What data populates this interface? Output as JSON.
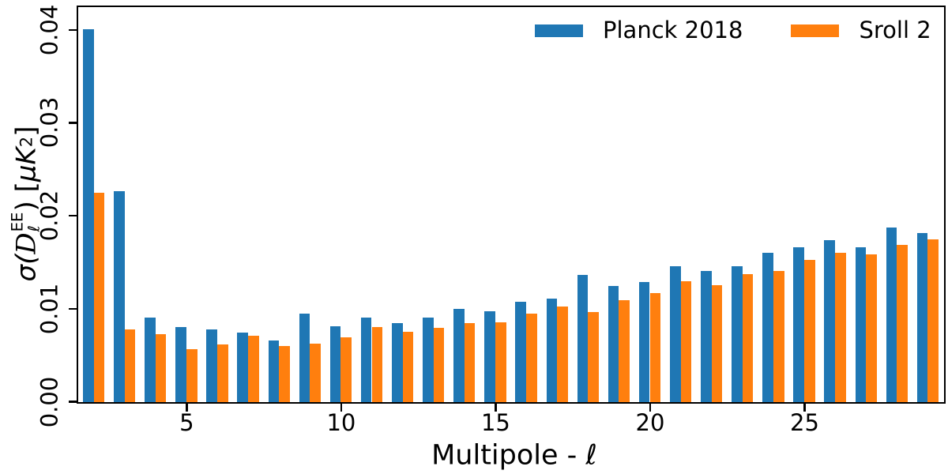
{
  "chart_data": {
    "type": "bar",
    "title": "",
    "xlabel": "Multipole - ℓ",
    "ylabel_text": "σ(D_ℓ^EE) [μK²]",
    "ylabel": {
      "prefix": "σ(",
      "symbol": "D",
      "sup": "EE",
      "sub": "ℓ",
      "mid": ") [",
      "unit": "μK",
      "unit_exp": "2",
      "suffix": "]"
    },
    "categories": [
      2,
      3,
      4,
      5,
      6,
      7,
      8,
      9,
      10,
      11,
      12,
      13,
      14,
      15,
      16,
      17,
      18,
      19,
      20,
      21,
      22,
      23,
      24,
      25,
      26,
      27,
      28,
      29
    ],
    "series": [
      {
        "name": "Planck 2018",
        "color": "#1f77b4",
        "values": [
          0.0401,
          0.0227,
          0.0091,
          0.0081,
          0.0078,
          0.0075,
          0.0066,
          0.0095,
          0.0082,
          0.0091,
          0.0085,
          0.0091,
          0.01,
          0.0098,
          0.0108,
          0.0111,
          0.0137,
          0.0125,
          0.0129,
          0.0146,
          0.0141,
          0.0146,
          0.0161,
          0.0167,
          0.0174,
          0.0167,
          0.0188,
          0.0182
        ]
      },
      {
        "name": "Sroll 2",
        "color": "#ff7f0e",
        "values": [
          0.0225,
          0.0078,
          0.0073,
          0.0057,
          0.0062,
          0.0071,
          0.006,
          0.0063,
          0.007,
          0.0081,
          0.0076,
          0.008,
          0.0085,
          0.0086,
          0.0095,
          0.0103,
          0.0097,
          0.011,
          0.0117,
          0.013,
          0.0126,
          0.0138,
          0.0141,
          0.0153,
          0.0161,
          0.0159,
          0.0169,
          0.0175
        ]
      }
    ],
    "x_ticks": [
      5,
      10,
      15,
      20,
      25
    ],
    "y_ticks": [
      0.0,
      0.01,
      0.02,
      0.03,
      0.04
    ],
    "y_tick_labels": [
      "0.00",
      "0.01",
      "0.02",
      "0.03",
      "0.04"
    ],
    "xlim": [
      1.5,
      29.5
    ],
    "ylim": [
      0,
      0.0424
    ],
    "bar_width_fraction": 0.35,
    "grid": false,
    "legend_position": "upper right"
  },
  "colors": {
    "axis": "#000000",
    "background": "#ffffff",
    "blue": "#1f77b4",
    "orange": "#ff7f0e"
  }
}
